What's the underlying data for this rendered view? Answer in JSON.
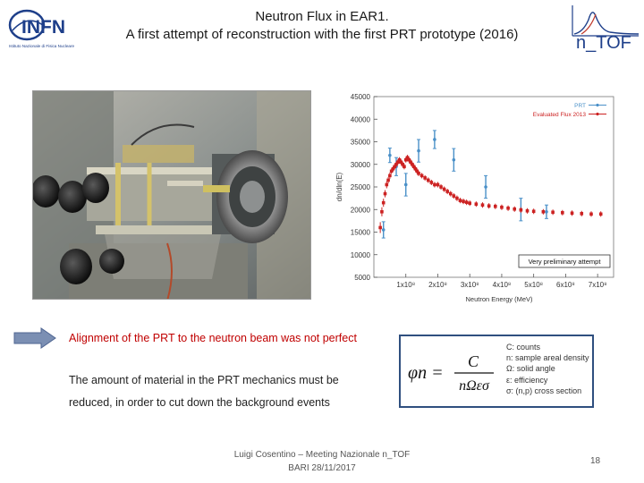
{
  "header": {
    "title_line1": "Neutron Flux in EAR1.",
    "title_line2": "A first attempt of reconstruction with the first PRT prototype (2016)",
    "infn_logo_text": "INFN",
    "infn_logo_subtext": "Istituto Nazionale di Fisica Nucleare",
    "ntof_logo_text": "n_TOF"
  },
  "photo": {
    "icon": "detector-photo"
  },
  "chart_data": {
    "type": "scatter",
    "title": "",
    "xlabel": "Neutron Energy (MeV)",
    "ylabel": "dn/dln(E)",
    "xlim": [
      0,
      750000000
    ],
    "ylim": [
      5000,
      45000
    ],
    "xticks": [
      "1x10⁸",
      "2x10⁸",
      "3x10⁸",
      "4x10⁸",
      "5x10⁸",
      "6x10⁸",
      "7x10⁸"
    ],
    "xtick_values": [
      100000000,
      200000000,
      300000000,
      400000000,
      500000000,
      600000000,
      700000000
    ],
    "yticks": [
      "5000",
      "10000",
      "15000",
      "20000",
      "25000",
      "30000",
      "35000",
      "40000",
      "45000"
    ],
    "ytick_values": [
      5000,
      10000,
      15000,
      20000,
      25000,
      30000,
      35000,
      40000,
      45000
    ],
    "legend_position": "top-right",
    "annotation": "Very preliminary attempt",
    "series": [
      {
        "name": "PRT",
        "color": "#4a90c8",
        "points": [
          [
            30000000,
            15500,
            1800
          ],
          [
            50000000,
            32000,
            1600
          ],
          [
            70000000,
            29500,
            2000
          ],
          [
            100000000,
            25500,
            2500
          ],
          [
            140000000,
            33000,
            2500
          ],
          [
            190000000,
            35500,
            2000
          ],
          [
            250000000,
            31000,
            2500
          ],
          [
            350000000,
            25000,
            2500
          ],
          [
            460000000,
            20000,
            2500
          ],
          [
            540000000,
            19500,
            1500
          ]
        ]
      },
      {
        "name": "Evaluated Flux 2013",
        "color": "#cc2222",
        "points": [
          [
            20000000,
            16000,
            1200
          ],
          [
            25000000,
            19500,
            1000
          ],
          [
            30000000,
            21500,
            900
          ],
          [
            35000000,
            23500,
            800
          ],
          [
            40000000,
            25500,
            800
          ],
          [
            45000000,
            26500,
            700
          ],
          [
            50000000,
            27500,
            700
          ],
          [
            55000000,
            28500,
            600
          ],
          [
            60000000,
            29000,
            600
          ],
          [
            65000000,
            29500,
            600
          ],
          [
            70000000,
            30000,
            600
          ],
          [
            75000000,
            30500,
            600
          ],
          [
            80000000,
            31000,
            600
          ],
          [
            85000000,
            30500,
            600
          ],
          [
            90000000,
            30000,
            600
          ],
          [
            95000000,
            29500,
            600
          ],
          [
            100000000,
            31000,
            600
          ],
          [
            105000000,
            31500,
            600
          ],
          [
            110000000,
            31000,
            600
          ],
          [
            115000000,
            30500,
            600
          ],
          [
            120000000,
            30000,
            600
          ],
          [
            125000000,
            29500,
            600
          ],
          [
            130000000,
            29000,
            600
          ],
          [
            135000000,
            28500,
            600
          ],
          [
            140000000,
            28000,
            600
          ],
          [
            150000000,
            27500,
            600
          ],
          [
            160000000,
            27000,
            600
          ],
          [
            170000000,
            26500,
            600
          ],
          [
            180000000,
            26000,
            600
          ],
          [
            190000000,
            25500,
            600
          ],
          [
            200000000,
            25500,
            600
          ],
          [
            210000000,
            25000,
            600
          ],
          [
            220000000,
            24500,
            600
          ],
          [
            230000000,
            24000,
            600
          ],
          [
            240000000,
            23500,
            600
          ],
          [
            250000000,
            23000,
            600
          ],
          [
            260000000,
            22500,
            600
          ],
          [
            270000000,
            22000,
            600
          ],
          [
            280000000,
            21800,
            600
          ],
          [
            290000000,
            21600,
            600
          ],
          [
            300000000,
            21400,
            600
          ],
          [
            320000000,
            21200,
            600
          ],
          [
            340000000,
            21000,
            600
          ],
          [
            360000000,
            20800,
            600
          ],
          [
            380000000,
            20700,
            600
          ],
          [
            400000000,
            20500,
            600
          ],
          [
            420000000,
            20300,
            600
          ],
          [
            440000000,
            20100,
            600
          ],
          [
            460000000,
            19900,
            600
          ],
          [
            480000000,
            19700,
            600
          ],
          [
            500000000,
            19600,
            600
          ],
          [
            530000000,
            19500,
            600
          ],
          [
            560000000,
            19400,
            600
          ],
          [
            590000000,
            19300,
            600
          ],
          [
            620000000,
            19200,
            600
          ],
          [
            650000000,
            19100,
            600
          ],
          [
            680000000,
            19000,
            600
          ],
          [
            710000000,
            19000,
            600
          ]
        ]
      }
    ]
  },
  "arrow": {
    "icon": "right-arrow-icon",
    "color": "#7b8fb3"
  },
  "bullets": {
    "highlight": "Alignment of the PRT to the neutron beam was not perfect",
    "line1": "The amount of material in the PRT mechanics must be",
    "line2": "reduced, in order to cut down the background events"
  },
  "formula": {
    "lhs": "φn =",
    "numerator": "C",
    "denominator": "nΩεσ",
    "legend": [
      "C: counts",
      "n: sample areal density",
      "Ω: solid angle",
      "ε: efficiency",
      "σ: (n,p) cross section"
    ]
  },
  "footer": {
    "line1": "Luigi Cosentino – Meeting Nazionale n_TOF",
    "line2": "BARI 28/11/2017",
    "page": "18"
  },
  "colors": {
    "highlight_red": "#c00000",
    "formula_border": "#2f4f7f",
    "infn_blue": "#1e3f8a"
  }
}
